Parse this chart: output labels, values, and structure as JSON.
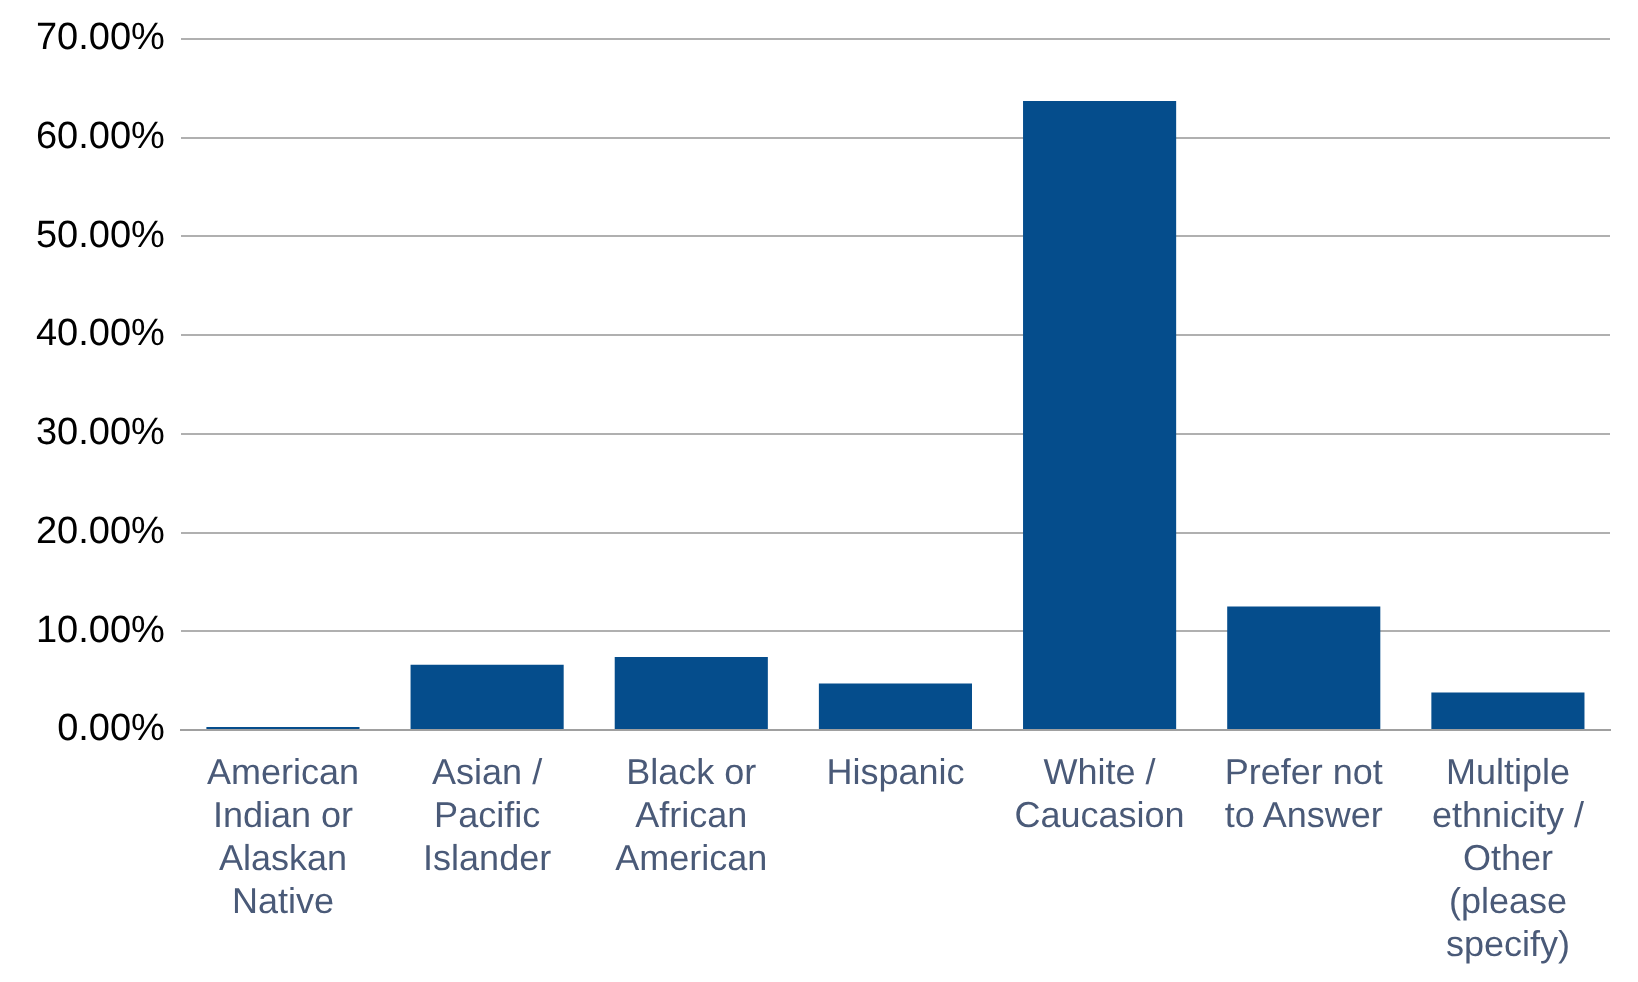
{
  "chart_data": {
    "type": "bar",
    "categories": [
      "American Indian or Alaskan Native",
      "Asian / Pacific Islander",
      "Black or African American",
      "Hispanic",
      "White / Caucasion",
      "Prefer not to Answer",
      "Multiple ethnicity / Other (please specify)"
    ],
    "values": [
      0.3,
      6.6,
      7.4,
      4.7,
      63.7,
      12.5,
      3.8
    ],
    "color": "#054d8c",
    "ylim": [
      0,
      70
    ],
    "yticks": [
      {
        "value": 0,
        "label": "0.00%"
      },
      {
        "value": 10,
        "label": "10.00%"
      },
      {
        "value": 20,
        "label": "20.00%"
      },
      {
        "value": 30,
        "label": "30.00%"
      },
      {
        "value": 40,
        "label": "40.00%"
      },
      {
        "value": 50,
        "label": "50.00%"
      },
      {
        "value": 60,
        "label": "60.00%"
      },
      {
        "value": 70,
        "label": "70.00%"
      }
    ],
    "grid": "y"
  }
}
